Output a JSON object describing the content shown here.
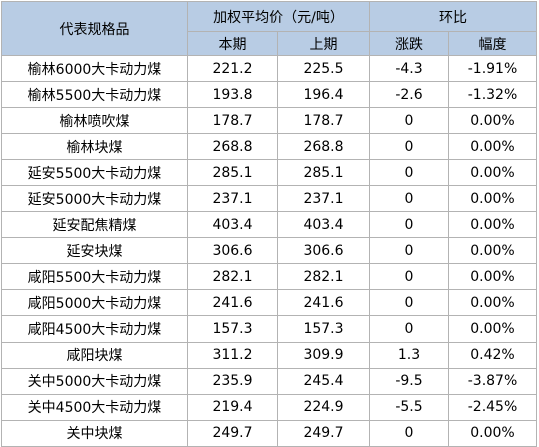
{
  "header": {
    "col_name": "代表规格品",
    "group_price": "加权平均价（元/吨）",
    "group_change": "环比",
    "current": "本期",
    "previous": "上期",
    "change": "涨跌",
    "rate": "幅度"
  },
  "rows": [
    {
      "name": "榆林6000大卡动力煤",
      "current": "221.2",
      "previous": "225.5",
      "change": "-4.3",
      "rate": "-1.91%"
    },
    {
      "name": "榆林5500大卡动力煤",
      "current": "193.8",
      "previous": "196.4",
      "change": "-2.6",
      "rate": "-1.32%"
    },
    {
      "name": "榆林喷吹煤",
      "current": "178.7",
      "previous": "178.7",
      "change": "0",
      "rate": "0.00%"
    },
    {
      "name": "榆林块煤",
      "current": "268.8",
      "previous": "268.8",
      "change": "0",
      "rate": "0.00%"
    },
    {
      "name": "延安5500大卡动力煤",
      "current": "285.1",
      "previous": "285.1",
      "change": "0",
      "rate": "0.00%"
    },
    {
      "name": "延安5000大卡动力煤",
      "current": "237.1",
      "previous": "237.1",
      "change": "0",
      "rate": "0.00%"
    },
    {
      "name": "延安配焦精煤",
      "current": "403.4",
      "previous": "403.4",
      "change": "0",
      "rate": "0.00%"
    },
    {
      "name": "延安块煤",
      "current": "306.6",
      "previous": "306.6",
      "change": "0",
      "rate": "0.00%"
    },
    {
      "name": "咸阳5500大卡动力煤",
      "current": "282.1",
      "previous": "282.1",
      "change": "0",
      "rate": "0.00%"
    },
    {
      "name": "咸阳5000大卡动力煤",
      "current": "241.6",
      "previous": "241.6",
      "change": "0",
      "rate": "0.00%"
    },
    {
      "name": "咸阳4500大卡动力煤",
      "current": "157.3",
      "previous": "157.3",
      "change": "0",
      "rate": "0.00%"
    },
    {
      "name": "咸阳块煤",
      "current": "311.2",
      "previous": "309.9",
      "change": "1.3",
      "rate": "0.42%"
    },
    {
      "name": "关中5000大卡动力煤",
      "current": "235.9",
      "previous": "245.4",
      "change": "-9.5",
      "rate": "-3.87%"
    },
    {
      "name": "关中4500大卡动力煤",
      "current": "219.4",
      "previous": "224.9",
      "change": "-5.5",
      "rate": "-2.45%"
    },
    {
      "name": "关中块煤",
      "current": "249.7",
      "previous": "249.7",
      "change": "0",
      "rate": "0.00%"
    }
  ],
  "colors": {
    "header_bg": "#b8cce4",
    "border": "#b3b3b3"
  }
}
